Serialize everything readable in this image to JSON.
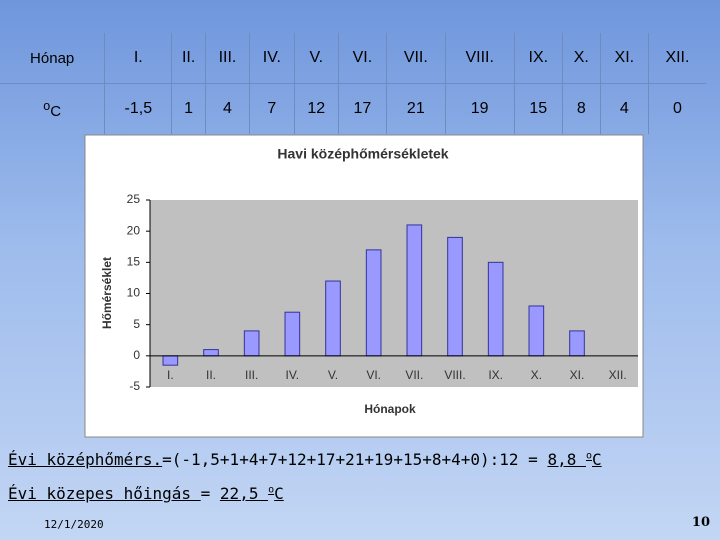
{
  "table": {
    "rows": [
      [
        "Hónap",
        "I.",
        "II.",
        "III.",
        "IV.",
        "V.",
        "VI.",
        "VII.",
        "VIII.",
        "IX.",
        "X.",
        "XI.",
        "XII."
      ],
      [
        {
          "sup": "o",
          "text": "C"
        },
        "-1,5",
        "1",
        "4",
        "7",
        "12",
        "17",
        "21",
        "19",
        "15",
        "8",
        "4",
        "0"
      ]
    ]
  },
  "chart_data": {
    "type": "bar",
    "title": "Havi középhőmérsékletek",
    "x_label": "Hónapok",
    "y_label": "Hőmérséklet",
    "categories": [
      "I.",
      "II.",
      "III.",
      "IV.",
      "V.",
      "VI.",
      "VII.",
      "VIII.",
      "IX.",
      "X.",
      "XI.",
      "XII."
    ],
    "values": [
      -1.5,
      1,
      4,
      7,
      12,
      17,
      21,
      19,
      15,
      8,
      4,
      0
    ],
    "color": "#9999ff",
    "ylim": [
      -5,
      25
    ],
    "yticks": [
      -5,
      0,
      5,
      10,
      15,
      20,
      25
    ],
    "grid": false
  },
  "notes": [
    [
      {
        "text": "Évi középhőmérs.",
        "underline": true
      },
      {
        "text": "=(-1,5+1+4+7+12+17+21+19+15+8+4+0):12 = ",
        "underline": false
      },
      {
        "text": "8,8 ",
        "underline": true
      },
      {
        "text": "o",
        "underline": true,
        "sup": true
      },
      {
        "text": "C",
        "underline": true
      }
    ],
    [
      {
        "text": "Évi közepes hőingás ",
        "underline": true
      },
      {
        "text": "= ",
        "underline": false
      },
      {
        "text": "22,5 ",
        "underline": true
      },
      {
        "text": "o",
        "underline": true,
        "sup": true
      },
      {
        "text": "C",
        "underline": true
      }
    ]
  ],
  "footer": {
    "date": "12/1/2020",
    "page": "10"
  }
}
